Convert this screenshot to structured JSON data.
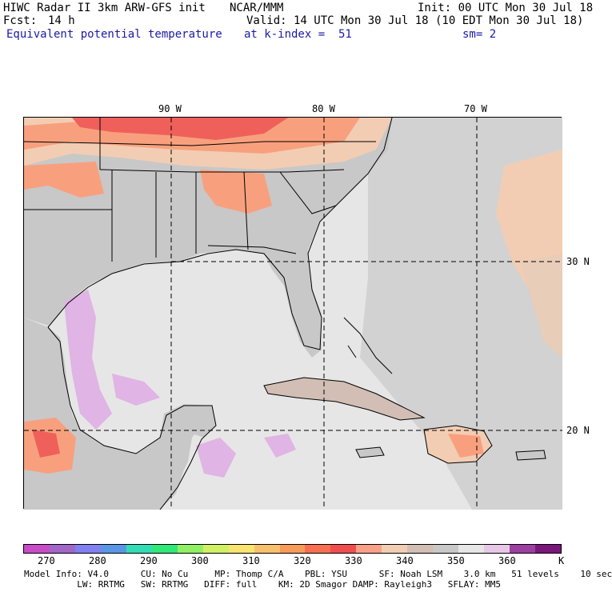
{
  "header": {
    "title": "HIWC Radar II 3km ARW-GFS init",
    "org": "NCAR/MMM",
    "init": "Init: 00 UTC Mon 30 Jul 18",
    "fcst_label": "Fcst:",
    "fcst_value": "14 h",
    "valid": "Valid: 14 UTC Mon 30 Jul 18 (10 EDT Mon 30 Jul 18)",
    "field": "Equivalent potential temperature",
    "level": "at k-index =  51",
    "smoothing": "sm= 2"
  },
  "map": {
    "lon_labels": [
      "90 W",
      "80 W",
      "70 W"
    ],
    "lat_labels": [
      "30 N",
      "20 N"
    ],
    "colors": {
      "land_gray": "#c8c8c8",
      "ocean_light": "#e6e6e6",
      "warm_tan": "#f2cdb3",
      "warm_salmon": "#f8a07e",
      "hot_red": "#f0605a",
      "cool_lilac": "#e0b4e4"
    }
  },
  "colorbar": {
    "unit": "K",
    "ticks": [
      "270",
      "280",
      "290",
      "300",
      "310",
      "320",
      "330",
      "340",
      "350",
      "360"
    ],
    "colors": [
      "#c84bc8",
      "#a066c8",
      "#8080f0",
      "#5a96e6",
      "#32dcb4",
      "#2ee878",
      "#90f064",
      "#d2f064",
      "#f8e46e",
      "#f8c06e",
      "#f89a5a",
      "#f86e50",
      "#f04e4e",
      "#f8a088",
      "#f2cdb3",
      "#d2beb4",
      "#c8c8c8",
      "#e6e6e6",
      "#e6c8e6",
      "#9c40a0",
      "#7a1678"
    ]
  },
  "footer": {
    "line1": "Model Info: V4.0      CU: No Cu     MP: Thomp C/A    PBL: YSU      SF: Noah LSM    3.0 km   51 levels    10 sec",
    "line2": "          LW: RRTMG   SW: RRTMG   DIFF: full    KM: 2D Smagor DAMP: Rayleigh3   SFLAY: MM5"
  }
}
